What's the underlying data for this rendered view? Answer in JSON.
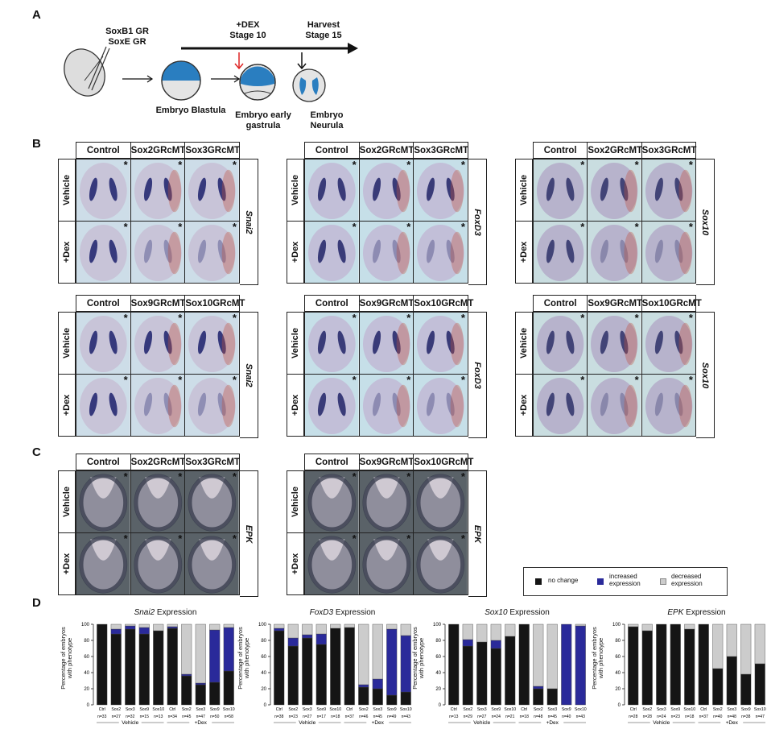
{
  "panel_labels": {
    "a": "A",
    "b": "B",
    "c": "C",
    "d": "D"
  },
  "diagram": {
    "injection": "SoxB1 GR\nSoxE GR",
    "dex": "+DEX\nStage 10",
    "harvest": "Harvest\nStage 15",
    "blastula": "Embryo Blastula",
    "gastrula": "Embryo early\ngastrula",
    "neurula": "Embryo\nNeurula"
  },
  "ish_rows": {
    "vehicle": "Vehicle",
    "dex": "+Dex"
  },
  "ish_panels": [
    {
      "cols": [
        "Control",
        "Sox2GRcMT",
        "Sox3GRcMT"
      ],
      "gene": "Snai2",
      "style": "snai2"
    },
    {
      "cols": [
        "Control",
        "Sox2GRcMT",
        "Sox3GRcMT"
      ],
      "gene": "FoxD3",
      "style": "foxd3"
    },
    {
      "cols": [
        "Control",
        "Sox2GRcMT",
        "Sox3GRcMT"
      ],
      "gene": "Sox10",
      "style": "sox10"
    },
    {
      "cols": [
        "Control",
        "Sox9GRcMT",
        "Sox10GRcMT"
      ],
      "gene": "Snai2",
      "style": "snai2"
    },
    {
      "cols": [
        "Control",
        "Sox9GRcMT",
        "Sox10GRcMT"
      ],
      "gene": "FoxD3",
      "style": "foxd3"
    },
    {
      "cols": [
        "Control",
        "Sox9GRcMT",
        "Sox10GRcMT"
      ],
      "gene": "Sox10",
      "style": "sox10"
    },
    {
      "cols": [
        "Control",
        "Sox2GRcMT",
        "Sox3GRcMT"
      ],
      "gene": "EPK",
      "style": "epk"
    },
    {
      "cols": [
        "Control",
        "Sox9GRcMT",
        "Sox10GRcMT"
      ],
      "gene": "EPK",
      "style": "epk"
    }
  ],
  "legend": {
    "no_change": "no change",
    "increased": "increased\nexpression",
    "decreased": "decreased\nexpression",
    "colors": {
      "no_change": "#151515",
      "increased": "#2a2a9a",
      "decreased": "#cccccc"
    }
  },
  "chart_common": {
    "ylabel": "Percentage of embryos\nwith phenotype",
    "yticks": [
      0,
      20,
      40,
      60,
      80,
      100
    ],
    "group_labels": [
      "Vehicle",
      "+Dex"
    ]
  },
  "chart_data": [
    {
      "type": "bar",
      "title_gene": "Snai2",
      "title_rest": " Expression",
      "categories": [
        "Ctrl",
        "Sox2",
        "Sox3",
        "Sox9",
        "Sox10",
        "Ctrl",
        "Sox2",
        "Sox3",
        "Sox9",
        "Sox10"
      ],
      "n": [
        "n=33",
        "n=27",
        "n=32",
        "n=15",
        "n=13",
        "n=34",
        "n=45",
        "n=47",
        "n=50",
        "n=58"
      ],
      "ylim": [
        0,
        100
      ],
      "series": [
        {
          "name": "no change",
          "values": [
            100,
            88,
            94,
            88,
            92,
            95,
            36,
            25,
            28,
            42
          ]
        },
        {
          "name": "increased expression",
          "values": [
            0,
            6,
            4,
            8,
            0,
            2,
            2,
            2,
            65,
            54
          ]
        },
        {
          "name": "decreased expression",
          "values": [
            0,
            6,
            2,
            4,
            8,
            3,
            62,
            73,
            7,
            4
          ]
        }
      ]
    },
    {
      "type": "bar",
      "title_gene": "FoxD3",
      "title_rest": " Expression",
      "categories": [
        "Ctrl",
        "Sox2",
        "Sox3",
        "Sox9",
        "Sox10",
        "Ctrl",
        "Sox2",
        "Sox3",
        "Sox9",
        "Sox10"
      ],
      "n": [
        "n=38",
        "n=23",
        "n=27",
        "n=17",
        "n=18",
        "n=37",
        "n=46",
        "n=45",
        "n=49",
        "n=43"
      ],
      "ylim": [
        0,
        100
      ],
      "series": [
        {
          "name": "no change",
          "values": [
            92,
            73,
            83,
            75,
            95,
            96,
            22,
            20,
            12,
            16
          ]
        },
        {
          "name": "increased expression",
          "values": [
            3,
            10,
            4,
            13,
            0,
            0,
            3,
            12,
            82,
            70
          ]
        },
        {
          "name": "decreased expression",
          "values": [
            5,
            17,
            13,
            12,
            5,
            4,
            75,
            68,
            6,
            14
          ]
        }
      ]
    },
    {
      "type": "bar",
      "title_gene": "Sox10",
      "title_rest": " Expression",
      "categories": [
        "Ctrl",
        "Sox2",
        "Sox3",
        "Sox9",
        "Sox10",
        "Ctrl",
        "Sox2",
        "Sox3",
        "Sox9",
        "Sox10"
      ],
      "n": [
        "n=13",
        "n=29",
        "n=27",
        "n=24",
        "n=21",
        "n=18",
        "n=48",
        "n=45",
        "n=40",
        "n=43"
      ],
      "ylim": [
        0,
        100
      ],
      "series": [
        {
          "name": "no change",
          "values": [
            100,
            73,
            78,
            70,
            85,
            100,
            20,
            20,
            0,
            0
          ]
        },
        {
          "name": "increased expression",
          "values": [
            0,
            8,
            0,
            10,
            0,
            0,
            3,
            0,
            100,
            98
          ]
        },
        {
          "name": "decreased expression",
          "values": [
            0,
            19,
            22,
            20,
            15,
            0,
            77,
            80,
            0,
            2
          ]
        }
      ]
    },
    {
      "type": "bar",
      "title_gene": "EPK",
      "title_rest": " Expression",
      "categories": [
        "Ctrl",
        "Sox2",
        "Sox3",
        "Sox9",
        "Sox10",
        "Ctrl",
        "Sox2",
        "Sox3",
        "Sox9",
        "Sox10"
      ],
      "n": [
        "n=28",
        "n=28",
        "n=24",
        "n=23",
        "n=18",
        "n=37",
        "n=40",
        "n=48",
        "n=38",
        "n=47"
      ],
      "ylim": [
        0,
        100
      ],
      "series": [
        {
          "name": "no change",
          "values": [
            97,
            92,
            100,
            100,
            94,
            100,
            45,
            60,
            38,
            51
          ]
        },
        {
          "name": "increased expression",
          "values": [
            0,
            0,
            0,
            0,
            0,
            0,
            0,
            0,
            0,
            0
          ]
        },
        {
          "name": "decreased expression",
          "values": [
            3,
            8,
            0,
            0,
            6,
            0,
            55,
            40,
            62,
            49
          ]
        }
      ]
    }
  ]
}
